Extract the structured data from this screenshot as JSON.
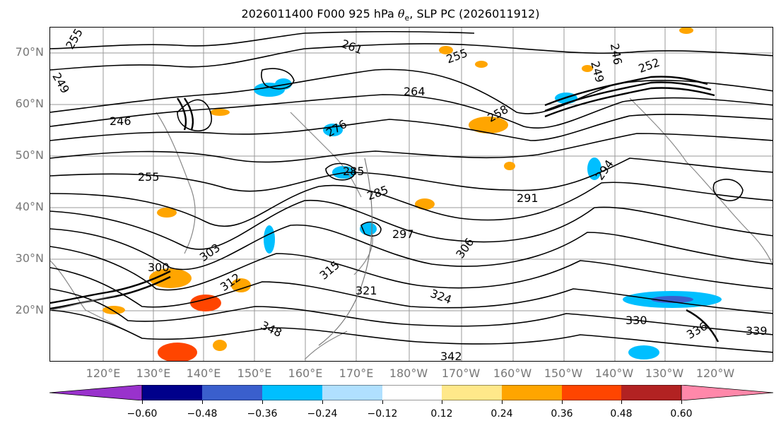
{
  "title": {
    "prefix": "2026011400 F000 925 hPa ",
    "theta": "θ",
    "sub": "e",
    "suffix": ", SLP PC (2026011912)"
  },
  "lat_labels": [
    "70°N",
    "60°N",
    "50°N",
    "40°N",
    "30°N",
    "20°N"
  ],
  "lon_labels": [
    "120°E",
    "130°E",
    "140°E",
    "150°E",
    "160°E",
    "170°E",
    "180°W",
    "170°W",
    "160°W",
    "150°W",
    "140°W",
    "130°W",
    "120°W"
  ],
  "contour_labels": [
    "255",
    "249",
    "246",
    "255",
    "261",
    "255",
    "246",
    "249",
    "252",
    "264",
    "258",
    "276",
    "285",
    "285",
    "291",
    "294",
    "297",
    "306",
    "300",
    "303",
    "312",
    "315",
    "321",
    "324",
    "330",
    "339",
    "342",
    "348",
    "336"
  ],
  "colorbar": {
    "ticks": [
      "−0.60",
      "−0.48",
      "−0.36",
      "−0.24",
      "−0.12",
      "0.12",
      "0.24",
      "0.36",
      "0.48",
      "0.60"
    ],
    "colors": [
      "#9932cc",
      "#00008b",
      "#3a5fcd",
      "#00bfff",
      "#b0e0ff",
      "#ffffff",
      "#ffe88a",
      "#ffa500",
      "#ff4500",
      "#b22222",
      "#ff88aa"
    ]
  }
}
